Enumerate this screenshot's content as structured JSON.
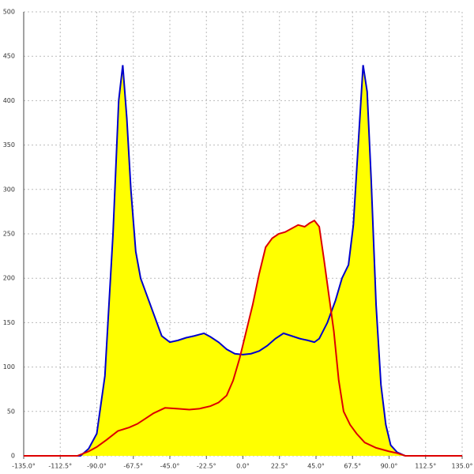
{
  "chart_data": {
    "type": "area",
    "xlim": [
      -135,
      135
    ],
    "ylim": [
      0,
      500
    ],
    "xticks": [
      {
        "value": -135,
        "label": "-135.0°"
      },
      {
        "value": -112.5,
        "label": "-112.5°"
      },
      {
        "value": -90,
        "label": "-90.0°"
      },
      {
        "value": -67.5,
        "label": "-67.5°"
      },
      {
        "value": -45,
        "label": "-45.0°"
      },
      {
        "value": -22.5,
        "label": "-22.5°"
      },
      {
        "value": 0,
        "label": "0.0°"
      },
      {
        "value": 22.5,
        "label": "22.5°"
      },
      {
        "value": 45,
        "label": "45.0°"
      },
      {
        "value": 67.5,
        "label": "67.5°"
      },
      {
        "value": 90,
        "label": "90.0°"
      },
      {
        "value": 112.5,
        "label": "112.5°"
      },
      {
        "value": 135,
        "label": "135.0°"
      }
    ],
    "yticks": [
      0,
      50,
      100,
      150,
      200,
      250,
      300,
      350,
      400,
      450,
      500
    ],
    "grid": true,
    "fill_color": "#ffff00",
    "series": [
      {
        "color": "#0000cc",
        "x": [
          -135,
          -100,
          -95,
          -90,
          -85,
          -80,
          -76.5,
          -74,
          -71.5,
          -69,
          -66,
          -63,
          -59,
          -55,
          -50,
          -45,
          -40,
          -35,
          -30,
          -24,
          -20,
          -15,
          -10,
          -5,
          0,
          5,
          10,
          15,
          20,
          25,
          30,
          35,
          40,
          44,
          47,
          52,
          57,
          61,
          65,
          68,
          71,
          74,
          76.5,
          79,
          82,
          85,
          88,
          91,
          95,
          100,
          135
        ],
        "values": [
          0,
          0,
          8,
          25,
          90,
          250,
          400,
          440,
          380,
          300,
          230,
          200,
          180,
          160,
          135,
          128,
          130,
          133,
          135,
          138,
          134,
          128,
          120,
          115,
          114,
          115,
          118,
          124,
          132,
          138,
          135,
          132,
          130,
          128,
          132,
          150,
          175,
          200,
          215,
          260,
          350,
          440,
          410,
          310,
          170,
          80,
          35,
          12,
          4,
          0,
          0
        ]
      },
      {
        "color": "#dd0000",
        "x": [
          -135,
          -102,
          -95,
          -90,
          -84,
          -77,
          -70,
          -65,
          -60,
          -55,
          -48,
          -40,
          -33,
          -27,
          -20,
          -15,
          -10,
          -6,
          -2,
          2,
          6,
          10,
          14,
          18,
          22,
          26,
          30,
          34,
          38,
          41,
          44,
          47,
          50,
          53,
          56,
          59,
          62,
          66,
          70,
          75,
          82,
          90,
          95,
          100,
          135
        ],
        "values": [
          0,
          0,
          5,
          10,
          18,
          28,
          32,
          36,
          42,
          48,
          54,
          53,
          52,
          53,
          56,
          60,
          68,
          85,
          110,
          140,
          170,
          205,
          235,
          245,
          250,
          252,
          256,
          260,
          258,
          262,
          265,
          258,
          220,
          180,
          140,
          85,
          50,
          35,
          25,
          15,
          9,
          5,
          3,
          0,
          0
        ]
      }
    ]
  }
}
